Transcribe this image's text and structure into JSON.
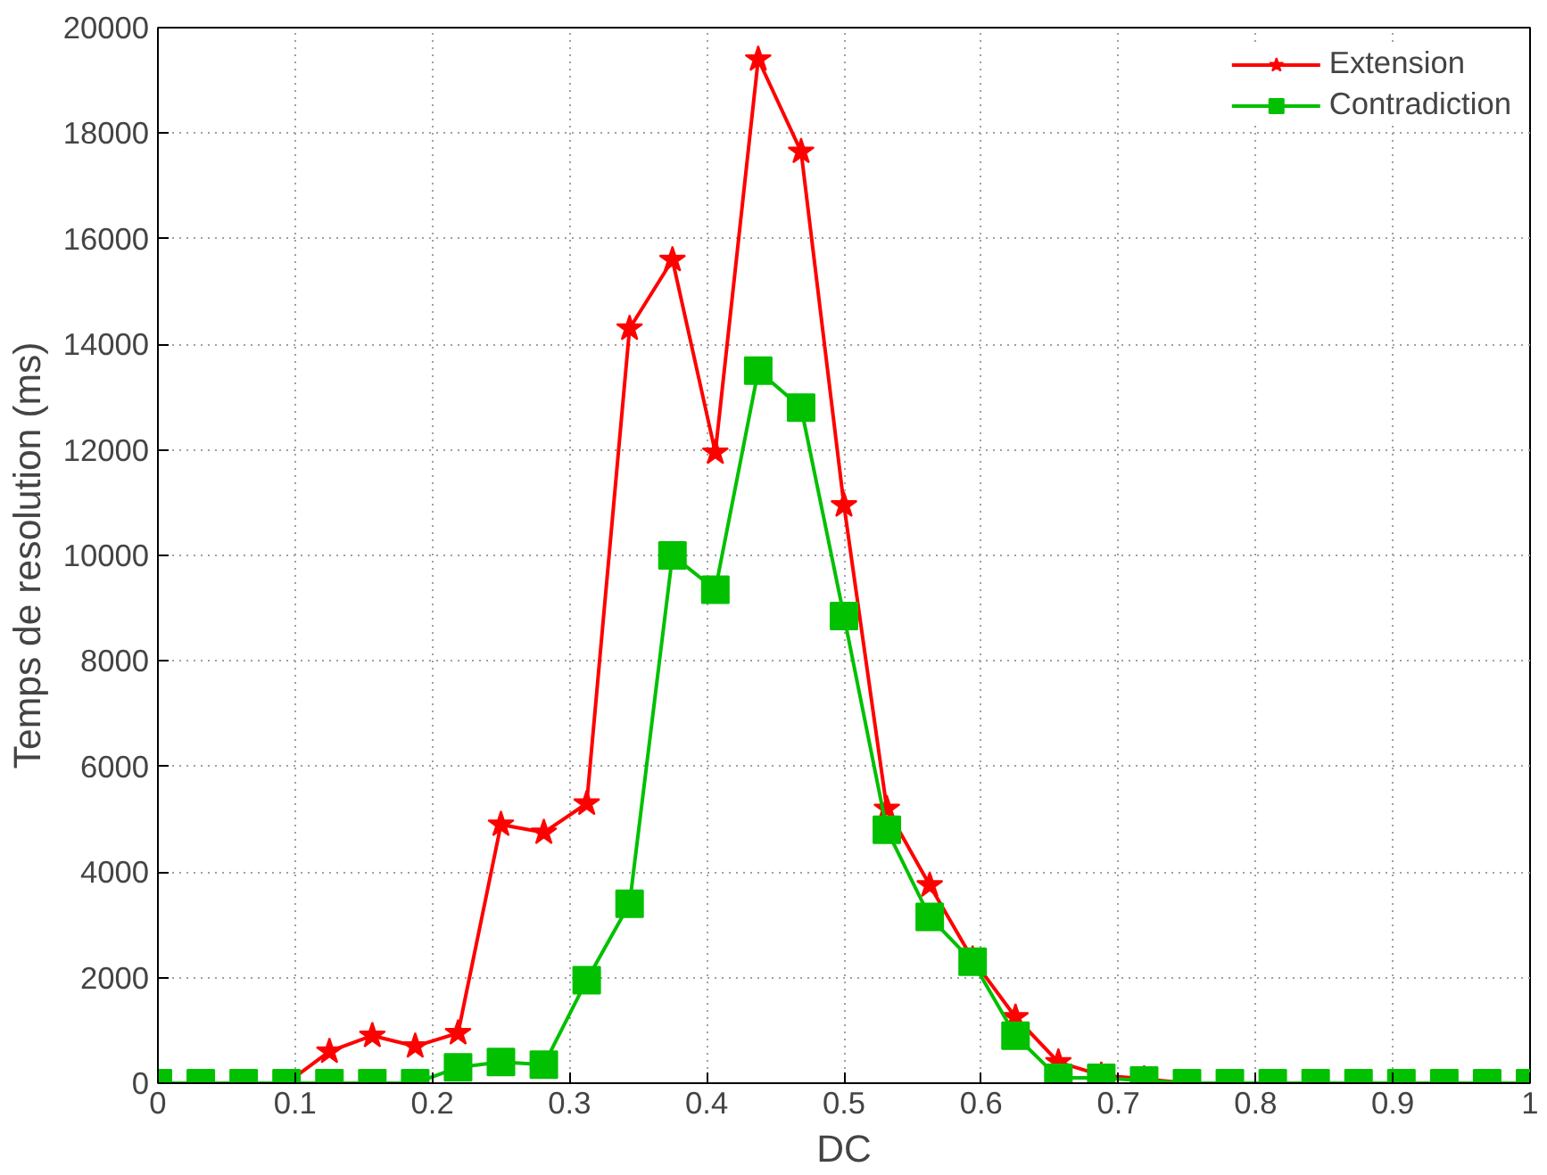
{
  "chart_data": {
    "type": "line",
    "xlabel": "DC",
    "ylabel": "Temps de resolution (ms)",
    "x": [
      0,
      0.03125,
      0.0625,
      0.09375,
      0.125,
      0.15625,
      0.1875,
      0.21875,
      0.25,
      0.28125,
      0.3125,
      0.34375,
      0.375,
      0.40625,
      0.4375,
      0.46875,
      0.5,
      0.53125,
      0.5625,
      0.59375,
      0.625,
      0.65625,
      0.6875,
      0.71875,
      0.75,
      0.78125,
      0.8125,
      0.84375,
      0.875,
      0.90625,
      0.9375,
      0.96875,
      1
    ],
    "series": [
      {
        "name": "Extension",
        "color": "#ff0000",
        "marker": "star",
        "values": [
          null,
          null,
          0,
          0,
          600,
          900,
          700,
          950,
          4900,
          4750,
          5300,
          14300,
          15600,
          11950,
          19400,
          17650,
          10950,
          5200,
          3750,
          2350,
          1250,
          400,
          150,
          80,
          0,
          0,
          null,
          null,
          null,
          null,
          null,
          null,
          null
        ]
      },
      {
        "name": "Contradiction",
        "color": "#00c000",
        "marker": "square",
        "values": [
          0,
          0,
          0,
          0,
          0,
          0,
          0,
          300,
          400,
          350,
          1950,
          3400,
          10000,
          9350,
          13500,
          12800,
          8850,
          4800,
          3150,
          2300,
          900,
          100,
          100,
          50,
          0,
          0,
          0,
          0,
          0,
          0,
          0,
          0,
          0
        ]
      }
    ],
    "xlim": [
      0,
      1
    ],
    "ylim": [
      0,
      20000
    ],
    "xticks": [
      0,
      0.1,
      0.2,
      0.3,
      0.4,
      0.5,
      0.6,
      0.7,
      0.8,
      0.9,
      1
    ],
    "yticks": [
      0,
      2000,
      4000,
      6000,
      8000,
      10000,
      12000,
      14000,
      16000,
      18000,
      20000
    ],
    "grid": true,
    "legend": "top right",
    "line_style": "solid"
  }
}
